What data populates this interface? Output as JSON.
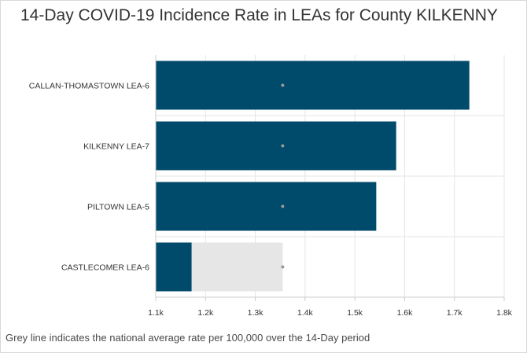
{
  "title": "14-Day COVID-19 Incidence Rate in LEAs for County KILKENNY",
  "footnote": "Grey line indicates the national average rate per 100,000 over the 14-Day period",
  "colors": {
    "bar": "#004a6b",
    "average_band": "#e6e6e6",
    "average_marker": "#9a9a9a",
    "grid": "#e5e5e5"
  },
  "chart_data": {
    "type": "bar",
    "orientation": "horizontal",
    "categories": [
      "CALLAN-THOMASTOWN LEA-6",
      "KILKENNY LEA-7",
      "PILTOWN LEA-5",
      "CASTLECOMER LEA-6"
    ],
    "series": [
      {
        "values": [
          1730,
          1583,
          1543,
          1172
        ]
      }
    ],
    "national_average": 1355,
    "xlim": [
      1100,
      1800
    ],
    "xticks": [
      1100,
      1200,
      1300,
      1400,
      1500,
      1600,
      1700,
      1800
    ],
    "xtick_labels": [
      "1.1k",
      "1.2k",
      "1.3k",
      "1.4k",
      "1.5k",
      "1.6k",
      "1.7k",
      "1.8k"
    ],
    "grid": true
  }
}
